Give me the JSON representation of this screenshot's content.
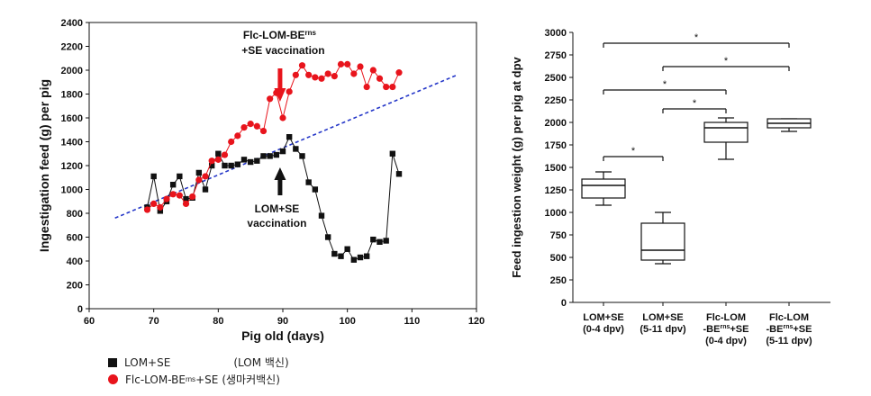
{
  "chart_data": [
    {
      "type": "line",
      "title": "",
      "xlabel": "Pig old (days)",
      "ylabel": "Ingestigation feed (g) per pig",
      "xlim": [
        60,
        120
      ],
      "ylim": [
        0,
        2400
      ],
      "xticks": [
        60,
        70,
        80,
        90,
        100,
        110,
        120
      ],
      "yticks": [
        0,
        200,
        400,
        600,
        800,
        1000,
        1200,
        1400,
        1600,
        1800,
        2000,
        2200,
        2400
      ],
      "series": [
        {
          "name": "LOM+SE",
          "color": "#111111",
          "marker": "square",
          "x": [
            69,
            70,
            71,
            72,
            73,
            74,
            75,
            76,
            77,
            78,
            79,
            80,
            81,
            82,
            83,
            84,
            85,
            86,
            87,
            88,
            89,
            90,
            91,
            92,
            93,
            94,
            95,
            96,
            97,
            98,
            99,
            100,
            101,
            102,
            103,
            104,
            105,
            106,
            107,
            108
          ],
          "y": [
            850,
            1110,
            820,
            900,
            1040,
            1110,
            920,
            930,
            1140,
            1000,
            1200,
            1300,
            1200,
            1200,
            1210,
            1250,
            1230,
            1240,
            1280,
            1280,
            1290,
            1320,
            1440,
            1340,
            1280,
            1060,
            1000,
            780,
            600,
            460,
            440,
            500,
            410,
            430,
            440,
            580,
            560,
            570,
            1300,
            1130
          ]
        },
        {
          "name": "Flc-LOM-BErns+SE",
          "color": "#e8141c",
          "marker": "circle",
          "x": [
            69,
            70,
            71,
            72,
            73,
            74,
            75,
            76,
            77,
            78,
            79,
            80,
            81,
            82,
            83,
            84,
            85,
            86,
            87,
            88,
            89,
            90,
            91,
            92,
            93,
            94,
            95,
            96,
            97,
            98,
            99,
            100,
            101,
            102,
            103,
            104,
            105,
            106,
            107,
            108
          ],
          "y": [
            830,
            880,
            850,
            920,
            960,
            950,
            880,
            940,
            1080,
            1110,
            1240,
            1250,
            1290,
            1400,
            1450,
            1520,
            1550,
            1530,
            1490,
            1760,
            1810,
            1600,
            1820,
            1960,
            2040,
            1960,
            1940,
            1930,
            1970,
            1950,
            2050,
            2050,
            1970,
            2030,
            1860,
            2000,
            1930,
            1860,
            1860,
            1980
          ]
        }
      ],
      "trendline": {
        "style": "dashed",
        "color": "#2436c8",
        "x": [
          64,
          117
        ],
        "y": [
          760,
          1960
        ]
      },
      "annotations": [
        {
          "text": "Flc-LOM-BE",
          "sup": "rns",
          "line2": "+SE vaccination",
          "color": "#e8141c",
          "x": 89.5,
          "y": 1850,
          "arrow": "down"
        },
        {
          "text": "LOM+SE",
          "line2": "vaccination",
          "color": "#111111",
          "x": 89.5,
          "y": 1100,
          "arrow": "up"
        }
      ]
    },
    {
      "type": "box",
      "title": "",
      "xlabel": "",
      "ylabel": "Feed ingestion weight (g) per pig at dpv",
      "ylim": [
        0,
        3000
      ],
      "yticks": [
        0,
        250,
        500,
        750,
        1000,
        1250,
        1500,
        1750,
        2000,
        2250,
        2500,
        2750,
        3000
      ],
      "categories": [
        {
          "line1": "LOM+SE",
          "line2": "(0-4 dpv)"
        },
        {
          "line1": "LOM+SE",
          "line2": "(5-11 dpv)"
        },
        {
          "line1": "Flc-LOM",
          "line2": "-BE",
          "sup": "rns",
          "line2b": "+SE",
          "line3": "(0-4 dpv)"
        },
        {
          "line1": "Flc-LOM",
          "line2": "-BE",
          "sup": "rns",
          "line2b": "+SE",
          "line3": "(5-11 dpv)"
        }
      ],
      "boxes": [
        {
          "min": 1080,
          "q1": 1160,
          "median": 1300,
          "q3": 1370,
          "max": 1450
        },
        {
          "min": 430,
          "q1": 470,
          "median": 580,
          "q3": 880,
          "max": 1000
        },
        {
          "min": 1590,
          "q1": 1780,
          "median": 1940,
          "q3": 2000,
          "max": 2050
        },
        {
          "min": 1900,
          "q1": 1940,
          "median": 1990,
          "q3": 2040,
          "max": 2040
        }
      ],
      "significance": [
        {
          "from": 0,
          "to": 3,
          "label": "*",
          "y": 2880
        },
        {
          "from": 1,
          "to": 3,
          "label": "*",
          "y": 2620
        },
        {
          "from": 0,
          "to": 2,
          "label": "*",
          "y": 2360
        },
        {
          "from": 1,
          "to": 2,
          "label": "*",
          "y": 2150
        },
        {
          "from": 0,
          "to": 1,
          "label": "*",
          "y": 1620
        }
      ]
    }
  ],
  "legend": {
    "items": [
      {
        "label": "LOM+SE",
        "sup": "",
        "label_after": "",
        "note": "(LOM 백신)"
      },
      {
        "label": "Flc-LOM-BE",
        "sup": "rns",
        "label_after": "+SE",
        "note": "(생마커백신)"
      }
    ]
  }
}
